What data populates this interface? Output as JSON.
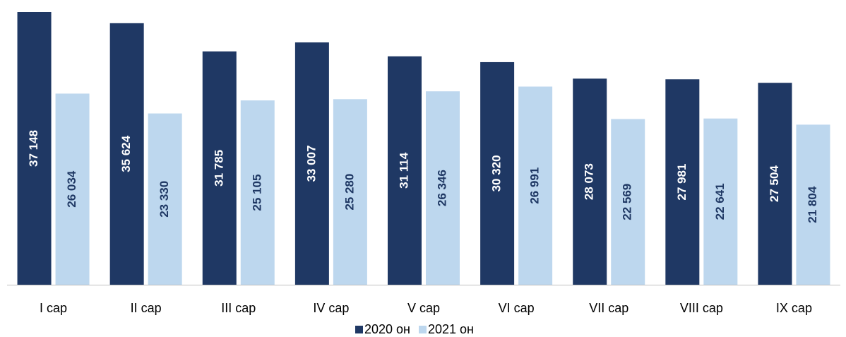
{
  "chart_data": {
    "type": "bar",
    "categories": [
      "I сар",
      "II сар",
      "III сар",
      "IV сар",
      "V сар",
      "VI сар",
      "VII сар",
      "VIII сар",
      "IX сар"
    ],
    "series": [
      {
        "name": "2020 он",
        "color": "#1f3864",
        "label_color": "#ffffff",
        "values": [
          37148,
          35624,
          31785,
          33007,
          31114,
          30320,
          28073,
          27981,
          27504
        ],
        "value_labels": [
          "37 148",
          "35 624",
          "31 785",
          "33 007",
          "31 114",
          "30 320",
          "28 073",
          "27 981",
          "27 504"
        ]
      },
      {
        "name": "2021 он",
        "color": "#bdd7ee",
        "label_color": "#1f3864",
        "values": [
          26034,
          23330,
          25105,
          25280,
          26346,
          26991,
          22569,
          22641,
          21804
        ],
        "value_labels": [
          "26 034",
          "23 330",
          "25 105",
          "25 280",
          "26 346",
          "26 991",
          "22 569",
          "22 641",
          "21 804"
        ]
      }
    ],
    "legend": "bottom"
  }
}
